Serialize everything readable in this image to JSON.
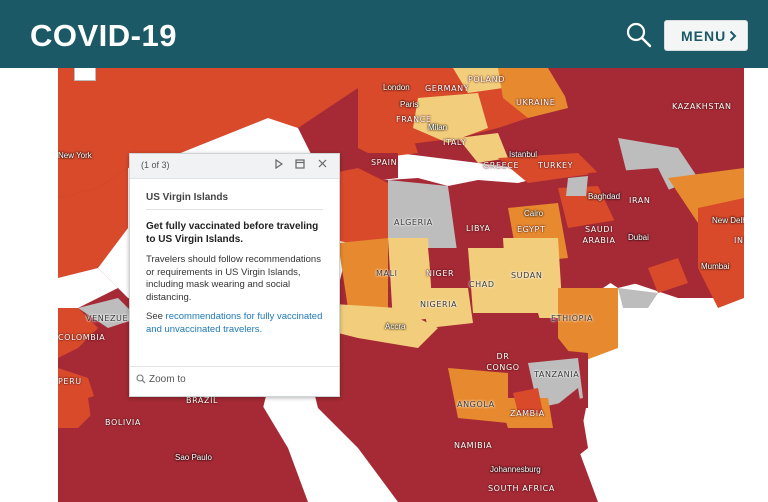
{
  "header": {
    "title": "COVID-19",
    "menu_label": "MENU"
  },
  "icons": {
    "search": "search-icon",
    "menu_arrow": "chevron-right-icon",
    "zoom": "zoom-in-icon"
  },
  "colors": {
    "header_bg": "#1c5966",
    "level_very_high": "#a52a35",
    "level_high": "#d94a2b",
    "level_moderate": "#e78a2f",
    "level_low": "#f2cd7c",
    "level_unknown": "#bdbdbd",
    "link": "#1f79b8"
  },
  "popup": {
    "pager": "(1 of 3)",
    "title": "US Virgin Islands",
    "headline": "Get fully vaccinated before traveling to US Virgin Islands.",
    "body": "Travelers should follow recommendations or requirements in US Virgin Islands, including mask wearing and social distancing.",
    "see_prefix": "See ",
    "link_text": "recommendations for fully vaccinated and unvaccinated travelers.",
    "zoom_label": "Zoom to"
  },
  "map": {
    "countries": [
      "POLAND",
      "GERMANY",
      "UKRAINE",
      "KAZAKHSTAN",
      "FRANCE",
      "ITALY",
      "SPAIN",
      "GREECE",
      "TURKEY",
      "IRAN",
      "ALGERIA",
      "LIBYA",
      "EGYPT",
      "SAUDI ARABIA",
      "MALI",
      "NIGER",
      "CHAD",
      "SUDAN",
      "NIGERIA",
      "ETHIOPIA",
      "DR CONGO",
      "TANZANIA",
      "ANGOLA",
      "ZAMBIA",
      "NAMIBIA",
      "SOUTH AFRICA",
      "BRAZIL",
      "COLOMBIA",
      "PERU",
      "BOLIVIA",
      "VENEZUELA",
      "INDIA"
    ],
    "cities": [
      "London",
      "Paris",
      "Milan",
      "Istanbul",
      "Baghdad",
      "Dubai",
      "Cairo",
      "New Delhi",
      "Mumbai",
      "Accra",
      "Johannesburg",
      "Sao Paulo",
      "New York"
    ]
  }
}
